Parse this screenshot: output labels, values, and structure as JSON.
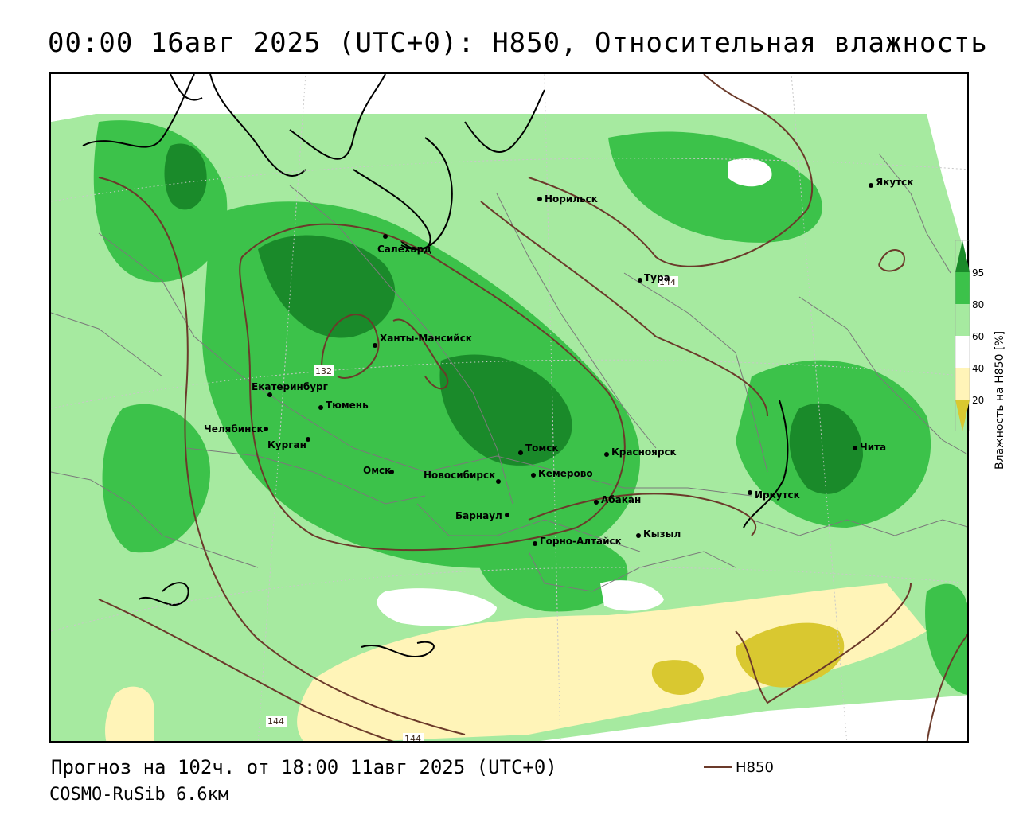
{
  "title": "00:00 16авг 2025 (UTC+0): H850, Относительная влажность",
  "footer": {
    "forecast": "Прогноз на 102ч. от 18:00 11авг 2025 (UTC+0)",
    "model": "COSMO-RuSib 6.6км"
  },
  "legend": {
    "contour_label": "H850",
    "contour_color": "#6b3a2a"
  },
  "colorbar": {
    "title": "Влажность на H850 [%]",
    "ticks": [
      "95",
      "80",
      "60",
      "40",
      "20"
    ],
    "colors": {
      "c95": "#1a8a2a",
      "c80": "#3cc24a",
      "c60": "#a6eaa0",
      "c50": "#ffffff",
      "c40": "#fff4b8",
      "c20": "#d9c830"
    }
  },
  "contour_labels": [
    "132",
    "144",
    "144",
    "144"
  ],
  "cities": [
    {
      "name": "Салехард"
    },
    {
      "name": "Норильск"
    },
    {
      "name": "Якутск"
    },
    {
      "name": "Тура"
    },
    {
      "name": "Ханты-Мансийск"
    },
    {
      "name": "Екатеринбург"
    },
    {
      "name": "Тюмень"
    },
    {
      "name": "Челябинск"
    },
    {
      "name": "Курган"
    },
    {
      "name": "Омск"
    },
    {
      "name": "Новосибирск"
    },
    {
      "name": "Томск"
    },
    {
      "name": "Кемерово"
    },
    {
      "name": "Красноярск"
    },
    {
      "name": "Барнаул"
    },
    {
      "name": "Абакан"
    },
    {
      "name": "Горно-Алтайск"
    },
    {
      "name": "Кызыл"
    },
    {
      "name": "Иркутск"
    },
    {
      "name": "Чита"
    }
  ]
}
